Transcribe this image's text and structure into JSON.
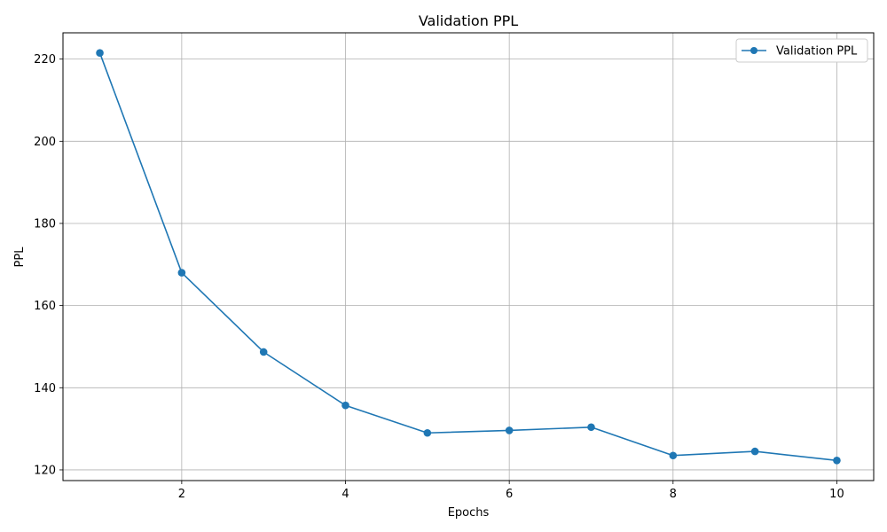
{
  "chart_data": {
    "type": "line",
    "title": "Validation PPL",
    "xlabel": "Epochs",
    "ylabel": "PPL",
    "xlim": [
      0.55,
      10.45
    ],
    "ylim": [
      117.4,
      226.4
    ],
    "xticks": [
      2,
      4,
      6,
      8,
      10
    ],
    "yticks": [
      120,
      140,
      160,
      180,
      200,
      220
    ],
    "grid": true,
    "legend_position": "top-right",
    "x": [
      1,
      2,
      3,
      4,
      5,
      6,
      7,
      8,
      9,
      10
    ],
    "series": [
      {
        "name": "Validation PPL",
        "color": "#1f77b4",
        "marker": "circle",
        "values": [
          221.5,
          168.0,
          148.7,
          135.7,
          129.0,
          129.6,
          130.4,
          123.5,
          124.5,
          122.3
        ]
      }
    ]
  }
}
